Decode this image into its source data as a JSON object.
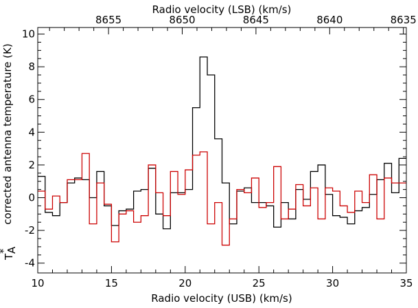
{
  "chart_data": {
    "type": "line",
    "step": true,
    "title": "",
    "xlabel": "Radio velocity (USB) (km/s)",
    "x2label": "Radio velocity (LSB) (km/s)",
    "ylabel": "corrected antenna temperature (K)",
    "ylabel_symbol": "T*A",
    "xlim": [
      10,
      35
    ],
    "ylim": [
      -4.6,
      10.4
    ],
    "x_ticks": [
      10,
      15,
      20,
      25,
      30,
      35
    ],
    "y_ticks": [
      -4,
      -2,
      0,
      2,
      4,
      6,
      8,
      10
    ],
    "x2_ticks": [
      8655,
      8650,
      8645,
      8640,
      8635
    ],
    "x2_tick_positions": [
      14.8,
      19.8,
      24.8,
      29.8,
      34.8
    ],
    "grid": false,
    "legend": "none",
    "series": [
      {
        "color": "#000000",
        "x": [
          10.0,
          10.5,
          11.0,
          11.5,
          12.0,
          12.5,
          13.0,
          13.5,
          14.0,
          14.5,
          15.0,
          15.5,
          16.0,
          16.5,
          17.0,
          17.5,
          18.0,
          18.5,
          19.0,
          19.5,
          20.0,
          20.5,
          21.0,
          21.5,
          22.0,
          22.5,
          23.0,
          23.5,
          24.0,
          24.5,
          25.0,
          25.5,
          26.0,
          26.5,
          27.0,
          27.5,
          28.0,
          28.5,
          29.0,
          29.5,
          30.0,
          30.5,
          31.0,
          31.5,
          32.0,
          32.5,
          33.0,
          33.5,
          34.0,
          34.5
        ],
        "values": [
          1.3,
          -0.9,
          -1.1,
          -0.3,
          0.9,
          1.2,
          1.1,
          0.0,
          1.6,
          -0.5,
          -1.7,
          -0.8,
          -0.7,
          0.4,
          0.5,
          1.8,
          -1.0,
          -1.9,
          0.3,
          0.3,
          0.5,
          5.5,
          8.6,
          7.5,
          3.6,
          0.9,
          -1.6,
          0.4,
          0.6,
          -0.3,
          -0.3,
          -0.5,
          -1.8,
          -0.3,
          -1.3,
          0.5,
          -0.1,
          1.6,
          2.0,
          0.2,
          -1.1,
          -1.2,
          -1.6,
          -0.8,
          -0.6,
          0.2,
          1.1,
          2.1,
          0.3,
          2.4
        ]
      },
      {
        "color": "#cc0000",
        "x": [
          10.0,
          10.5,
          11.0,
          11.5,
          12.0,
          12.5,
          13.0,
          13.5,
          14.0,
          14.5,
          15.0,
          15.5,
          16.0,
          16.5,
          17.0,
          17.5,
          18.0,
          18.5,
          19.0,
          19.5,
          20.0,
          20.5,
          21.0,
          21.5,
          22.0,
          22.5,
          23.0,
          23.5,
          24.0,
          24.5,
          25.0,
          25.5,
          26.0,
          26.5,
          27.0,
          27.5,
          28.0,
          28.5,
          29.0,
          29.5,
          30.0,
          30.5,
          31.0,
          31.5,
          32.0,
          32.5,
          33.0,
          33.5,
          34.0,
          34.5
        ],
        "values": [
          0.4,
          -0.7,
          0.1,
          -0.3,
          1.1,
          1.1,
          2.7,
          -1.6,
          0.9,
          -0.4,
          -2.7,
          -1.0,
          -0.8,
          -1.5,
          -1.1,
          2.0,
          0.3,
          -1.1,
          1.6,
          0.2,
          1.7,
          2.6,
          2.8,
          -1.6,
          -0.3,
          -2.9,
          -1.3,
          0.5,
          0.3,
          1.2,
          -0.6,
          -0.3,
          1.9,
          -1.3,
          -0.7,
          0.8,
          -0.5,
          0.6,
          -1.3,
          0.6,
          0.4,
          -0.5,
          -0.9,
          0.4,
          -0.3,
          1.4,
          -1.3,
          1.2,
          0.9,
          0.9
        ]
      }
    ]
  }
}
